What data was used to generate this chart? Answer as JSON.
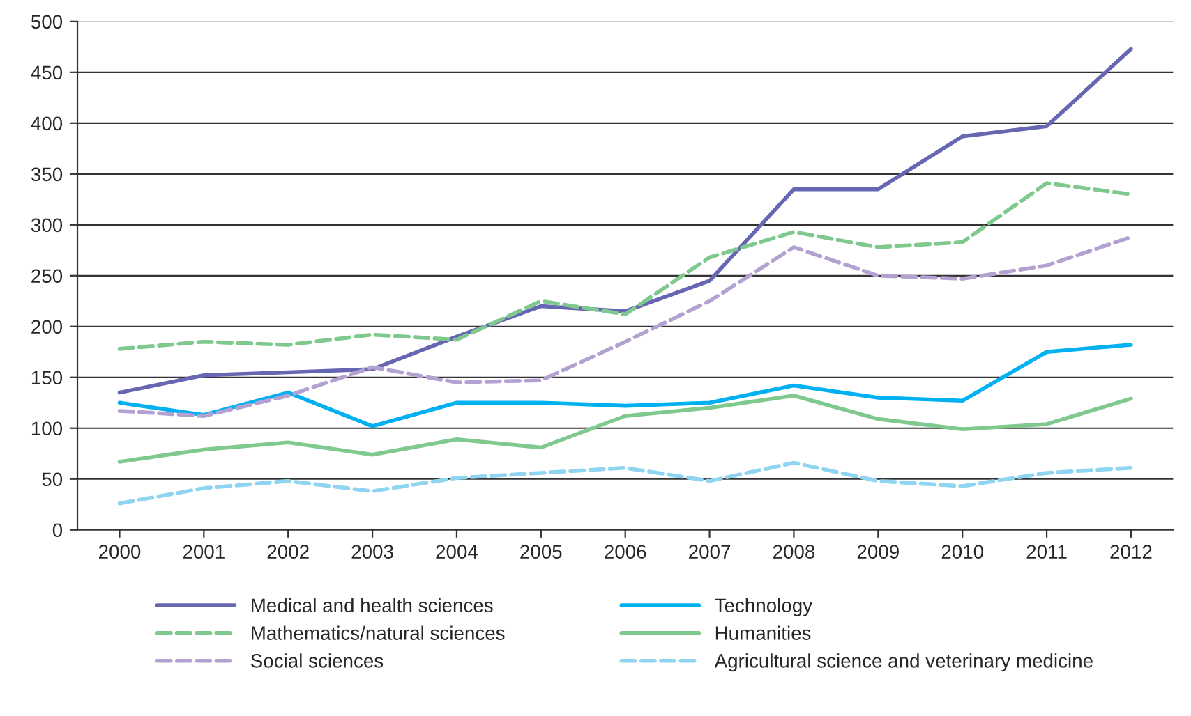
{
  "chart_data": {
    "type": "line",
    "categories": [
      "2000",
      "2001",
      "2002",
      "2003",
      "2004",
      "2005",
      "2006",
      "2007",
      "2008",
      "2009",
      "2010",
      "2011",
      "2012"
    ],
    "ylim": [
      0,
      500
    ],
    "yticks": [
      0,
      50,
      100,
      150,
      200,
      250,
      300,
      350,
      400,
      450,
      500
    ],
    "grid": "y",
    "legend": "bottom",
    "marker": "none",
    "series": [
      {
        "name": "Medical and health sciences",
        "color": "#6666b3",
        "line_style": "solid",
        "values": [
          135,
          152,
          155,
          158,
          190,
          220,
          215,
          245,
          335,
          335,
          387,
          397,
          473
        ]
      },
      {
        "name": "Technology",
        "color": "#00b0f0",
        "line_style": "solid",
        "values": [
          125,
          113,
          135,
          102,
          125,
          125,
          122,
          125,
          142,
          130,
          127,
          175,
          182
        ]
      },
      {
        "name": "Mathematics/natural sciences",
        "color": "#7fc98f",
        "line_style": "dashed",
        "values": [
          178,
          185,
          182,
          192,
          187,
          225,
          212,
          268,
          293,
          278,
          283,
          341,
          330
        ]
      },
      {
        "name": "Humanities",
        "color": "#7fc98f",
        "line_style": "solid",
        "values": [
          67,
          79,
          86,
          74,
          89,
          81,
          112,
          120,
          132,
          109,
          99,
          104,
          129
        ]
      },
      {
        "name": "Social sciences",
        "color": "#b3a2d1",
        "line_style": "dashed",
        "values": [
          117,
          112,
          132,
          160,
          145,
          147,
          185,
          225,
          278,
          250,
          247,
          260,
          288
        ]
      },
      {
        "name": "Agricultural science and veterinary medicine",
        "color": "#8fd4f0",
        "line_style": "dashed",
        "values": [
          26,
          41,
          48,
          38,
          51,
          56,
          61,
          48,
          66,
          48,
          43,
          56,
          61
        ]
      }
    ]
  }
}
